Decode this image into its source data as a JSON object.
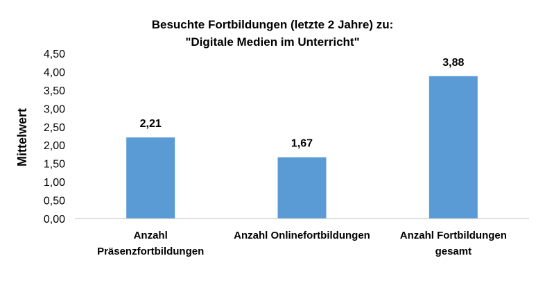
{
  "chart_data": {
    "type": "bar",
    "title": [
      "Besuchte Fortbildungen (letzte 2 Jahre) zu:",
      "\"Digitale Medien im Unterricht\""
    ],
    "ylabel": "Mittelwert",
    "xlabel": "",
    "categories": [
      [
        "Anzahl",
        "Präsenzfortbildungen"
      ],
      [
        "Anzahl Onlinefortbildungen"
      ],
      [
        "Anzahl Fortbildungen",
        "gesamt"
      ]
    ],
    "values": [
      2.21,
      1.67,
      3.88
    ],
    "value_labels": [
      "2,21",
      "1,67",
      "3,88"
    ],
    "ylim": [
      0,
      4.5
    ],
    "yticks": [
      "0,00",
      "0,50",
      "1,00",
      "1,50",
      "2,00",
      "2,50",
      "3,00",
      "3,50",
      "4,00",
      "4,50"
    ],
    "grid": false,
    "legend": "none",
    "bar_color": "#5b9bd5",
    "axis_color": "#bfbfbf"
  }
}
